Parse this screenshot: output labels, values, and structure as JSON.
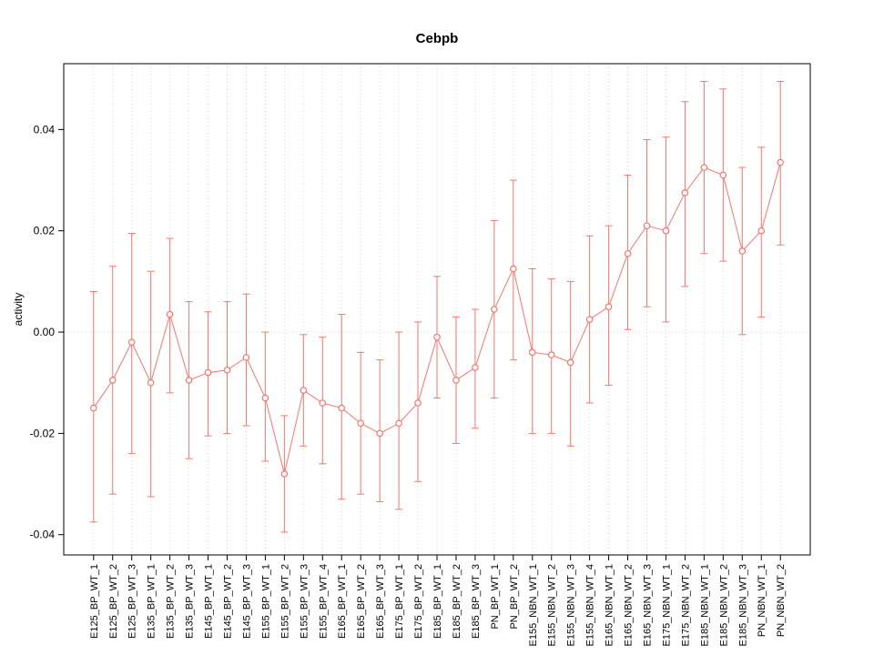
{
  "page": {
    "background": "#ffffff"
  },
  "chart_data": {
    "type": "line",
    "title": "Cebpb",
    "xlabel": "",
    "ylabel": "activity",
    "legend": "none",
    "grid": "dotted vertical line at each category plus dotted horizontal line at y=0",
    "grid_color": "#d9d9d9",
    "frame_color": "#000000",
    "color": "#f8766d",
    "point_style": "open-circle",
    "error_bars": true,
    "ylim": [
      -0.044,
      0.053
    ],
    "ytick_values": [
      -0.04,
      -0.02,
      0,
      0.02,
      0.04
    ],
    "ytick_labels": [
      "-0.04",
      "-0.02",
      "0.00",
      "0.02",
      "0.04"
    ],
    "categories": [
      "E125_BP_WT_1",
      "E125_BP_WT_2",
      "E125_BP_WT_3",
      "E135_BP_WT_1",
      "E135_BP_WT_2",
      "E135_BP_WT_3",
      "E145_BP_WT_1",
      "E145_BP_WT_2",
      "E145_BP_WT_3",
      "E155_BP_WT_1",
      "E155_BP_WT_2",
      "E155_BP_WT_3",
      "E155_BP_WT_4",
      "E165_BP_WT_1",
      "E165_BP_WT_2",
      "E165_BP_WT_3",
      "E175_BP_WT_1",
      "E175_BP_WT_2",
      "E185_BP_WT_1",
      "E185_BP_WT_2",
      "E185_BP_WT_3",
      "PN_BP_WT_1",
      "PN_BP_WT_2",
      "E155_NBN_WT_1",
      "E155_NBN_WT_2",
      "E155_NBN_WT_3",
      "E155_NBN_WT_4",
      "E165_NBN_WT_1",
      "E165_NBN_WT_2",
      "E165_NBN_WT_3",
      "E175_NBN_WT_1",
      "E175_NBN_WT_2",
      "E185_NBN_WT_1",
      "E185_NBN_WT_2",
      "E185_NBN_WT_3",
      "PN_NBN_WT_1",
      "PN_NBN_WT_2"
    ],
    "series": [
      {
        "name": "activity",
        "values": [
          -0.015,
          -0.0095,
          -0.002,
          -0.01,
          0.0035,
          -0.0095,
          -0.008,
          -0.0075,
          -0.005,
          -0.013,
          -0.028,
          -0.0115,
          -0.014,
          -0.015,
          -0.018,
          -0.02,
          -0.018,
          -0.014,
          -0.001,
          -0.0095,
          -0.007,
          0.0045,
          0.0125,
          -0.004,
          -0.0045,
          -0.006,
          0.0025,
          0.005,
          0.0155,
          0.021,
          0.02,
          0.0275,
          0.0325,
          0.031,
          0.016,
          0.02,
          0.0335
        ],
        "upper": [
          0.008,
          0.013,
          0.0195,
          0.012,
          0.0185,
          0.006,
          0.004,
          0.006,
          0.0075,
          0.0,
          -0.0165,
          -0.0005,
          -0.001,
          0.0035,
          -0.004,
          -0.0055,
          0.0,
          0.002,
          0.011,
          0.003,
          0.0045,
          0.022,
          0.03,
          0.0125,
          0.0105,
          0.01,
          0.019,
          0.021,
          0.031,
          0.038,
          0.0385,
          0.0455,
          0.0495,
          0.048,
          0.0325,
          0.0365,
          0.0495
        ],
        "lower": [
          -0.0375,
          -0.032,
          -0.024,
          -0.0325,
          -0.012,
          -0.025,
          -0.0205,
          -0.02,
          -0.0185,
          -0.0255,
          -0.0395,
          -0.0225,
          -0.026,
          -0.033,
          -0.032,
          -0.0335,
          -0.035,
          -0.0295,
          -0.013,
          -0.022,
          -0.019,
          -0.013,
          -0.0055,
          -0.02,
          -0.02,
          -0.0225,
          -0.014,
          -0.0105,
          0.0005,
          0.005,
          0.002,
          0.009,
          0.0155,
          0.014,
          -0.0005,
          0.003,
          0.0172
        ]
      }
    ]
  }
}
